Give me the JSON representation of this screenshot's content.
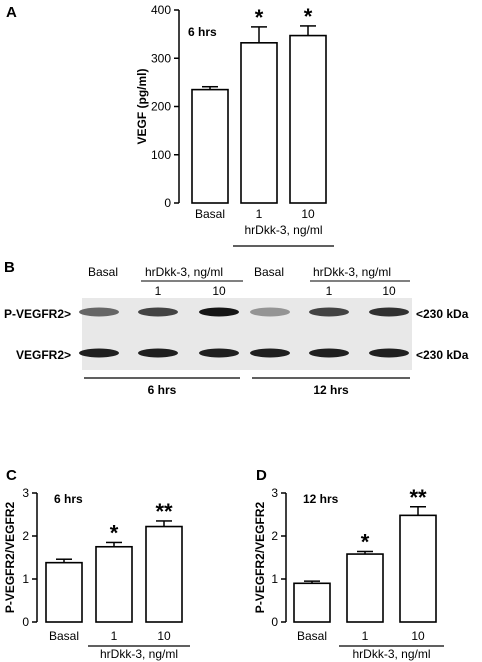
{
  "panels": {
    "A": {
      "letter": "A",
      "note": "6 hrs"
    },
    "B": {
      "letter": "B"
    },
    "C": {
      "letter": "C",
      "note": "6 hrs"
    },
    "D": {
      "letter": "D",
      "note": "12 hrs"
    }
  },
  "blot": {
    "header_basal_1": "Basal",
    "header_treat_1": "hrDkk-3, ng/ml",
    "header_basal_2": "Basal",
    "header_treat_2": "hrDkk-3, ng/ml",
    "dose_1a": "1",
    "dose_10a": "10",
    "dose_1b": "1",
    "dose_10b": "10",
    "row1_label": "P-VEGFR2>",
    "row2_label": "VEGFR2>",
    "row1_size": "<230 kDa",
    "row2_size": "<230 kDa",
    "time_1": "6 hrs",
    "time_2": "12 hrs",
    "p_bands": [
      0.55,
      0.75,
      1.0,
      0.3,
      0.75,
      0.85
    ],
    "t_bands": [
      0.95,
      0.95,
      0.95,
      0.95,
      0.95,
      0.95
    ]
  },
  "chart_data": [
    {
      "type": "bar",
      "panel": "A",
      "categories": [
        "Basal",
        "1",
        "10"
      ],
      "values": [
        235,
        332,
        347
      ],
      "errors": [
        6,
        33,
        20
      ],
      "significance": [
        "",
        "*",
        "*"
      ],
      "group_label": "hrDkk-3, ng/ml",
      "ylabel": "VEGF (pg/ml)",
      "ylim": [
        0,
        400
      ],
      "yticks": [
        0,
        100,
        200,
        300,
        400
      ]
    },
    {
      "type": "bar",
      "panel": "C",
      "categories": [
        "Basal",
        "1",
        "10"
      ],
      "values": [
        1.38,
        1.75,
        2.22
      ],
      "errors": [
        0.08,
        0.1,
        0.13
      ],
      "significance": [
        "",
        "*",
        "**"
      ],
      "group_label": "hrDkk-3, ng/ml",
      "ylabel": "P-VEGFR2/VEGFR2",
      "ylim": [
        0,
        3
      ],
      "yticks": [
        0,
        1,
        2,
        3
      ]
    },
    {
      "type": "bar",
      "panel": "D",
      "categories": [
        "Basal",
        "1",
        "10"
      ],
      "values": [
        0.9,
        1.58,
        2.48
      ],
      "errors": [
        0.05,
        0.06,
        0.2
      ],
      "significance": [
        "",
        "*",
        "**"
      ],
      "group_label": "hrDkk-3, ng/ml",
      "ylabel": "P-VEGFR2/VEGFR2",
      "ylim": [
        0,
        3
      ],
      "yticks": [
        0,
        1,
        2,
        3
      ]
    }
  ]
}
